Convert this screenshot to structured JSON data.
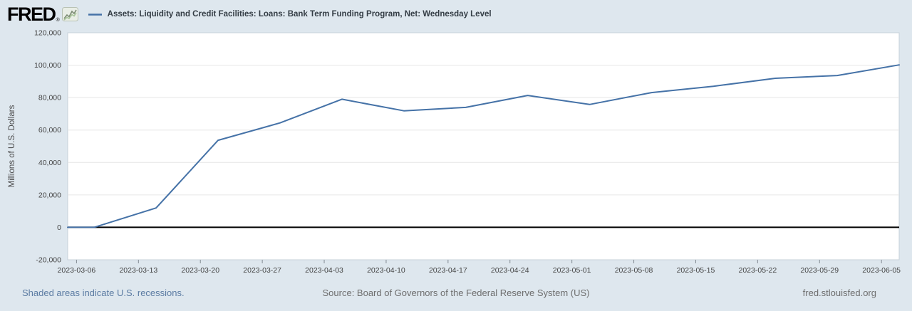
{
  "header": {
    "logo_text": "FRED",
    "logo_registered": "®",
    "legend_label": "Assets: Liquidity and Credit Facilities: Loans: Bank Term Funding Program, Net: Wednesday Level"
  },
  "footer": {
    "recessions_note": "Shaded areas indicate U.S. recessions.",
    "source": "Source: Board of Governors of the Federal Reserve System (US)",
    "site": "fred.stlouisfed.org"
  },
  "colors": {
    "page_bg": "#dee7ee",
    "plot_bg": "#ffffff",
    "plot_border": "#c7d0d9",
    "grid": "#e6e6e6",
    "zero_line": "#000000",
    "tick_mark": "#848c94",
    "tick_text": "#444444",
    "axis_title_text": "#4a4a4a",
    "line": "#4572a7",
    "link": "#5c7ca3",
    "footer_text": "#6e6e6e"
  },
  "chart_data": {
    "type": "line",
    "title": "Assets: Liquidity and Credit Facilities: Loans: Bank Term Funding Program, Net: Wednesday Level",
    "xlabel": "",
    "ylabel": "Millions of U.S. Dollars",
    "ylim": [
      -20000,
      120000
    ],
    "y_ticks": [
      -20000,
      0,
      20000,
      40000,
      60000,
      80000,
      100000,
      120000
    ],
    "x_domain": [
      "2023-03-05",
      "2023-06-07"
    ],
    "x_ticks": [
      "2023-03-06",
      "2023-03-13",
      "2023-03-20",
      "2023-03-27",
      "2023-04-03",
      "2023-04-10",
      "2023-04-17",
      "2023-04-24",
      "2023-05-01",
      "2023-05-08",
      "2023-05-15",
      "2023-05-22",
      "2023-05-29",
      "2023-06-05"
    ],
    "grid": true,
    "legend_position": "top-left",
    "series": [
      {
        "name": "Assets: Liquidity and Credit Facilities: Loans: Bank Term Funding Program, Net: Wednesday Level",
        "color": "#4572a7",
        "points": [
          {
            "date": "2023-03-08",
            "value": 0
          },
          {
            "date": "2023-03-15",
            "value": 11943
          },
          {
            "date": "2023-03-22",
            "value": 53669
          },
          {
            "date": "2023-03-29",
            "value": 64403
          },
          {
            "date": "2023-04-05",
            "value": 79021
          },
          {
            "date": "2023-04-12",
            "value": 71837
          },
          {
            "date": "2023-04-19",
            "value": 73982
          },
          {
            "date": "2023-04-26",
            "value": 81327
          },
          {
            "date": "2023-05-03",
            "value": 75778
          },
          {
            "date": "2023-05-10",
            "value": 83101
          },
          {
            "date": "2023-05-17",
            "value": 87006
          },
          {
            "date": "2023-05-24",
            "value": 91907
          },
          {
            "date": "2023-05-31",
            "value": 93615
          },
          {
            "date": "2023-06-07",
            "value": 100161
          }
        ]
      }
    ]
  }
}
